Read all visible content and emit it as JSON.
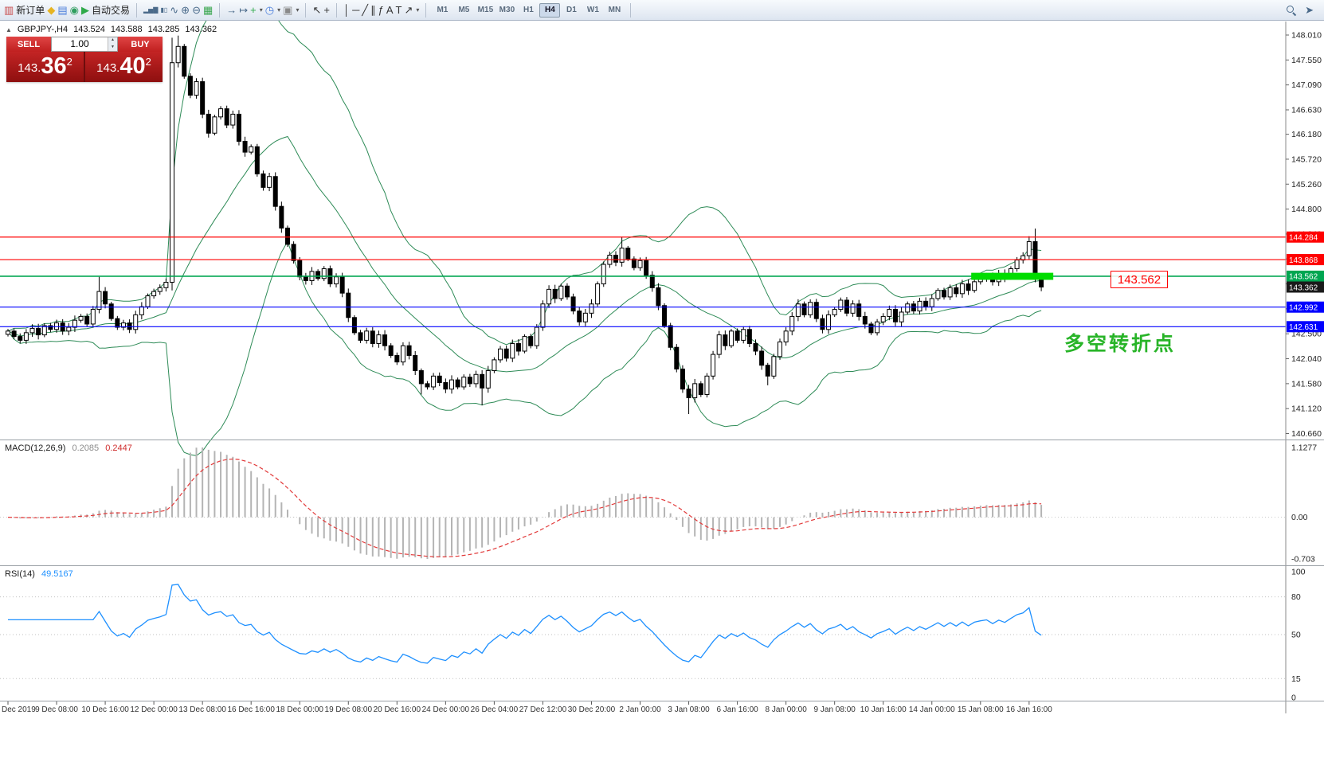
{
  "toolbar": {
    "active_timeframe": "H4",
    "groups": [
      {
        "name": "file",
        "items": [
          {
            "name": "new-order-button",
            "glyph": "▥",
            "color": "#c84b4b",
            "label": "新订单"
          },
          {
            "name": "metaeditor-button",
            "glyph": "◆",
            "color": "#e6b422"
          },
          {
            "name": "profile-button",
            "glyph": "▤",
            "color": "#4a7edb"
          },
          {
            "name": "community-button",
            "glyph": "◉",
            "color": "#2f9e5f"
          },
          {
            "name": "autotrading-button",
            "glyph": "▶",
            "color": "#2faa4a",
            "label": "自动交易"
          }
        ]
      },
      {
        "name": "chart-type",
        "items": [
          {
            "name": "bar-chart-button",
            "glyph": "▂▅▇",
            "color": "#4a6a8a",
            "small": true
          },
          {
            "name": "candlestick-button",
            "glyph": "▮▯",
            "color": "#4a6a8a",
            "small": true
          },
          {
            "name": "line-chart-button",
            "glyph": "∿",
            "color": "#4a6a8a"
          },
          {
            "name": "zoom-in-button",
            "glyph": "⊕",
            "color": "#4a6a8a"
          },
          {
            "name": "zoom-out-button",
            "glyph": "⊖",
            "color": "#4a6a8a"
          },
          {
            "name": "tile-windows-button",
            "glyph": "▦",
            "color": "#3aa64f"
          }
        ]
      },
      {
        "name": "navigation",
        "items": [
          {
            "name": "auto-scroll-button",
            "glyph": "→",
            "color": "#4a6a8a"
          },
          {
            "name": "chart-shift-button",
            "glyph": "↦",
            "color": "#4a6a8a"
          },
          {
            "name": "indicators-button",
            "glyph": "+",
            "color": "#2faa4a",
            "caret": true
          },
          {
            "name": "periods-button",
            "glyph": "◷",
            "color": "#4a7edb",
            "caret": true
          },
          {
            "name": "templates-button",
            "glyph": "▣",
            "color": "#8a8a8a",
            "caret": true
          }
        ]
      },
      {
        "name": "cursor",
        "items": [
          {
            "name": "cursor-button",
            "glyph": "↖",
            "color": "#333333"
          },
          {
            "name": "crosshair-button",
            "glyph": "+",
            "color": "#333333"
          }
        ]
      },
      {
        "name": "objects",
        "items": [
          {
            "name": "vertical-line-button",
            "glyph": "│",
            "color": "#333333"
          },
          {
            "name": "horizontal-line-button",
            "glyph": "─",
            "color": "#333333"
          },
          {
            "name": "trendline-button",
            "glyph": "╱",
            "color": "#333333"
          },
          {
            "name": "channel-button",
            "glyph": "∥",
            "color": "#333333"
          },
          {
            "name": "fibonacci-button",
            "glyph": "ƒ",
            "color": "#333333"
          },
          {
            "name": "text-button",
            "glyph": "A",
            "color": "#333333"
          },
          {
            "name": "label-button",
            "glyph": "T",
            "color": "#333333"
          },
          {
            "name": "arrows-button",
            "glyph": "↗",
            "color": "#333333",
            "caret": true
          }
        ]
      },
      {
        "name": "timeframes",
        "items": [
          {
            "name": "timeframe-m1",
            "label": "M1"
          },
          {
            "name": "timeframe-m5",
            "label": "M5"
          },
          {
            "name": "timeframe-m15",
            "label": "M15"
          },
          {
            "name": "timeframe-m30",
            "label": "M30"
          },
          {
            "name": "timeframe-h1",
            "label": "H1"
          },
          {
            "name": "timeframe-h4",
            "label": "H4"
          },
          {
            "name": "timeframe-d1",
            "label": "D1"
          },
          {
            "name": "timeframe-w1",
            "label": "W1"
          },
          {
            "name": "timeframe-mn",
            "label": "MN"
          }
        ]
      },
      {
        "name": "right",
        "align": "right",
        "items": [
          {
            "name": "search-button",
            "icon": "magnifier"
          },
          {
            "name": "pointer-button",
            "glyph": "➤",
            "color": "#4a6a8a"
          }
        ]
      }
    ]
  },
  "quote_panel": {
    "collapse_arrow": "▲",
    "symbol": "GBPJPY-,H4",
    "ohlc": [
      "143.524",
      "143.588",
      "143.285",
      "143.362"
    ],
    "one_click": {
      "sell_label": "SELL",
      "buy_label": "BUY",
      "volume": "1.00",
      "spin_up": "▲",
      "spin_down": "▼",
      "sell_price": {
        "big": "143.",
        "pips": "36",
        "pt": "2"
      },
      "buy_price": {
        "big": "143.",
        "pips": "40",
        "pt": "2"
      }
    }
  },
  "chart_data": {
    "type": "candlestick",
    "symbol": "GBPJPY-",
    "timeframe": "H4",
    "title": "GBPJPY-,H4",
    "y_axis_ticks": [
      "148.010",
      "147.550",
      "147.090",
      "146.630",
      "146.180",
      "145.720",
      "145.260",
      "144.800",
      "144.340",
      "143.880",
      "143.420",
      "142.960",
      "142.500",
      "142.040",
      "141.580",
      "141.120",
      "140.660"
    ],
    "x_axis_labels": [
      {
        "i": 0,
        "t": "Dec 2019"
      },
      {
        "i": 8,
        "t": "9 Dec 08:00"
      },
      {
        "i": 16,
        "t": "10 Dec 16:00"
      },
      {
        "i": 24,
        "t": "12 Dec 00:00"
      },
      {
        "i": 32,
        "t": "13 Dec 08:00"
      },
      {
        "i": 40,
        "t": "16 Dec 16:00"
      },
      {
        "i": 48,
        "t": "18 Dec 00:00"
      },
      {
        "i": 56,
        "t": "19 Dec 08:00"
      },
      {
        "i": 64,
        "t": "20 Dec 16:00"
      },
      {
        "i": 72,
        "t": "24 Dec 00:00"
      },
      {
        "i": 80,
        "t": "26 Dec 04:00"
      },
      {
        "i": 88,
        "t": "27 Dec 12:00"
      },
      {
        "i": 96,
        "t": "30 Dec 20:00"
      },
      {
        "i": 104,
        "t": "2 Jan 00:00"
      },
      {
        "i": 112,
        "t": "3 Jan 08:00"
      },
      {
        "i": 120,
        "t": "6 Jan 16:00"
      },
      {
        "i": 128,
        "t": "8 Jan 00:00"
      },
      {
        "i": 136,
        "t": "9 Jan 08:00"
      },
      {
        "i": 144,
        "t": "10 Jan 16:00"
      },
      {
        "i": 152,
        "t": "14 Jan 00:00"
      },
      {
        "i": 160,
        "t": "15 Jan 08:00"
      },
      {
        "i": 168,
        "t": "16 Jan 16:00"
      }
    ],
    "closes": [
      142.55,
      142.45,
      142.38,
      142.52,
      142.6,
      142.48,
      142.65,
      142.58,
      142.7,
      142.55,
      142.62,
      142.75,
      142.82,
      142.68,
      142.95,
      143.28,
      143.05,
      142.78,
      142.62,
      142.7,
      142.58,
      142.85,
      143.0,
      143.2,
      143.28,
      143.35,
      143.45,
      147.5,
      147.8,
      147.25,
      146.9,
      147.15,
      146.55,
      146.2,
      146.5,
      146.65,
      146.35,
      146.55,
      146.05,
      145.85,
      145.95,
      145.45,
      145.2,
      145.4,
      144.85,
      144.45,
      144.15,
      143.85,
      143.55,
      143.48,
      143.65,
      143.52,
      143.7,
      143.42,
      143.55,
      143.25,
      142.8,
      142.52,
      142.38,
      142.55,
      142.32,
      142.48,
      142.28,
      142.1,
      141.98,
      142.28,
      142.1,
      141.82,
      141.58,
      141.52,
      141.72,
      141.6,
      141.48,
      141.65,
      141.52,
      141.7,
      141.58,
      141.75,
      141.5,
      141.82,
      142.02,
      142.22,
      142.05,
      142.32,
      142.18,
      142.45,
      142.28,
      142.62,
      143.05,
      143.32,
      143.15,
      143.38,
      143.18,
      142.92,
      142.72,
      142.88,
      143.05,
      143.42,
      143.78,
      143.95,
      143.82,
      144.08,
      143.88,
      143.72,
      143.85,
      143.58,
      143.35,
      143.02,
      142.65,
      142.25,
      141.85,
      141.48,
      141.32,
      141.58,
      141.38,
      141.72,
      142.12,
      142.48,
      142.28,
      142.55,
      142.38,
      142.58,
      142.32,
      142.18,
      141.92,
      141.72,
      142.08,
      142.35,
      142.55,
      142.82,
      143.05,
      142.85,
      143.08,
      142.78,
      142.58,
      142.85,
      142.95,
      143.12,
      142.88,
      143.05,
      142.82,
      142.68,
      142.52,
      142.72,
      142.82,
      142.95,
      142.72,
      142.9,
      143.05,
      142.92,
      143.1,
      143.0,
      143.15,
      143.3,
      143.18,
      143.35,
      143.24,
      143.42,
      143.3,
      143.46,
      143.52,
      143.56,
      143.46,
      143.6,
      143.54,
      143.7,
      143.86,
      143.94,
      144.2,
      143.52,
      143.362
    ],
    "overrides": {
      "15": {
        "h": 143.55
      },
      "27": {
        "h": 147.96,
        "l": 143.3
      },
      "28": {
        "h": 148.0
      },
      "68": {
        "l": 141.38
      },
      "78": {
        "l": 141.18
      },
      "101": {
        "h": 144.28
      },
      "112": {
        "l": 141.02
      },
      "125": {
        "l": 141.55
      },
      "168": {
        "h": 144.3
      },
      "169": {
        "h": 144.44,
        "l": 143.45
      },
      "170": {
        "o": 143.524,
        "h": 143.588,
        "l": 143.285,
        "c": 143.362
      }
    },
    "hlines": [
      {
        "price": 144.284,
        "color": "#ff0000",
        "tag": "144.284",
        "width": 1.2
      },
      {
        "price": 143.868,
        "color": "#ff0000",
        "tag": "143.868",
        "width": 1.2
      },
      {
        "price": 143.562,
        "color": "#00a651",
        "tag": "143.562",
        "width": 1.6
      },
      {
        "price": 143.362,
        "color": "#1a1a1a",
        "tag": "143.362",
        "line": false
      },
      {
        "price": 142.992,
        "color": "#0000ff",
        "tag": "142.992",
        "width": 1.2
      },
      {
        "price": 142.631,
        "color": "#0000ff",
        "tag": "142.631",
        "width": 1.2
      }
    ],
    "highlight_bar": {
      "price": 143.56,
      "from_index": 159,
      "to_index": 172.5,
      "half_height_price": 0.065,
      "color": "#00dd00"
    },
    "annotations": {
      "price_flag": "143.562",
      "turning_point": "多空转折点"
    },
    "bollinger": {
      "period": 20,
      "deviation": 2,
      "color": "#2e8b57"
    },
    "macd": {
      "label": "MACD(12,26,9)",
      "fast": 12,
      "slow": 26,
      "signal": 9,
      "value_main": "0.2085",
      "value_signal": "0.2447",
      "scale_max": "1.1277",
      "scale_zero": "0.00",
      "scale_min": "-0.703",
      "hist_color": "#b4b4b4",
      "signal_color": "#e23a3a"
    },
    "rsi": {
      "label": "RSI(14)",
      "period": 14,
      "value": "49.5167",
      "levels": [
        80,
        50,
        15
      ],
      "scale_labels": [
        100,
        80,
        50,
        15,
        0
      ],
      "line_color": "#1e90ff"
    }
  }
}
